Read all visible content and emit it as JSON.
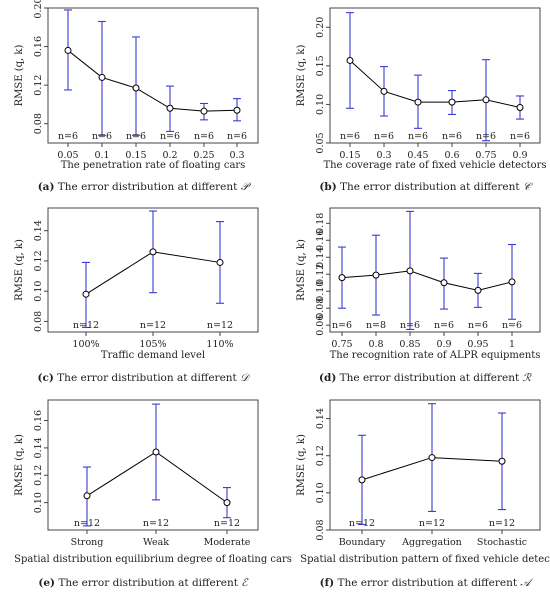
{
  "chart_data": [
    {
      "type": "line",
      "panel": "a",
      "categories": [
        "0.05",
        "0.1",
        "0.15",
        "0.2",
        "0.25",
        "0.3"
      ],
      "means": [
        0.156,
        0.128,
        0.117,
        0.096,
        0.093,
        0.094
      ],
      "err_low": [
        0.115,
        0.068,
        0.068,
        0.072,
        0.084,
        0.083
      ],
      "err_high": [
        0.198,
        0.186,
        0.17,
        0.119,
        0.101,
        0.106
      ],
      "n_labels": [
        "n=6",
        "n=6",
        "n=6",
        "n=6",
        "n=6",
        "n=6"
      ],
      "ylim": [
        0.06,
        0.2
      ],
      "yticks": [
        0.08,
        0.12,
        0.16,
        0.2
      ],
      "ytick_labels": [
        "0.08",
        "0.12",
        "0.16",
        "0.20"
      ],
      "ylabel": "RMSE (q, k)",
      "xlabel": "The penetration rate of floating cars",
      "caption_prefix": "(a)",
      "caption_text": "The error distribution at different",
      "caption_symbol": "𝒫"
    },
    {
      "type": "line",
      "panel": "b",
      "categories": [
        "0.15",
        "0.3",
        "0.45",
        "0.6",
        "0.75",
        "0.9"
      ],
      "means": [
        0.157,
        0.117,
        0.103,
        0.103,
        0.106,
        0.096
      ],
      "err_low": [
        0.095,
        0.085,
        0.069,
        0.087,
        0.053,
        0.081
      ],
      "err_high": [
        0.219,
        0.149,
        0.138,
        0.118,
        0.158,
        0.111
      ],
      "n_labels": [
        "n=6",
        "n=6",
        "n=6",
        "n=6",
        "n=6",
        "n=6"
      ],
      "ylim": [
        0.05,
        0.225
      ],
      "yticks": [
        0.05,
        0.1,
        0.15,
        0.2
      ],
      "ytick_labels": [
        "0.05",
        "0.10",
        "0.15",
        "0.20"
      ],
      "ylabel": "RMSE (q, k)",
      "xlabel": "The coverage rate of fixed vehicle detectors",
      "caption_prefix": "(b)",
      "caption_text": "The error distribution at different",
      "caption_symbol": "𝒞"
    },
    {
      "type": "line",
      "panel": "c",
      "categories": [
        "100%",
        "105%",
        "110%"
      ],
      "means": [
        0.098,
        0.126,
        0.119
      ],
      "err_low": [
        0.076,
        0.099,
        0.092
      ],
      "err_high": [
        0.119,
        0.153,
        0.146
      ],
      "n_labels": [
        "n=12",
        "n=12",
        "n=12"
      ],
      "ylim": [
        0.073,
        0.155
      ],
      "yticks": [
        0.08,
        0.1,
        0.12,
        0.14
      ],
      "ytick_labels": [
        "0.08",
        "0.10",
        "0.12",
        "0.14"
      ],
      "ylabel": "RMSE (q, k)",
      "xlabel": "Traffic demand level",
      "caption_prefix": "(c)",
      "caption_text": "The error distribution at different",
      "caption_symbol": "𝒟"
    },
    {
      "type": "line",
      "panel": "d",
      "categories": [
        "0.75",
        "0.8",
        "0.85",
        "0.9",
        "0.95",
        "1"
      ],
      "means": [
        0.116,
        0.119,
        0.124,
        0.11,
        0.101,
        0.111
      ],
      "err_low": [
        0.08,
        0.072,
        0.055,
        0.079,
        0.081,
        0.067
      ],
      "err_high": [
        0.152,
        0.166,
        0.194,
        0.139,
        0.121,
        0.155
      ],
      "n_labels": [
        "n=6",
        "n=8",
        "n=6",
        "n=6",
        "n=6",
        "n=6"
      ],
      "ylim": [
        0.052,
        0.198
      ],
      "yticks": [
        0.06,
        0.08,
        0.1,
        0.12,
        0.14,
        0.16,
        0.18
      ],
      "ytick_labels": [
        "0.06",
        "0.08",
        "0.10",
        "0.12",
        "0.14",
        "0.16",
        "0.18"
      ],
      "ylabel": "RMSE (q, k)",
      "xlabel": "The recognition rate of ALPR equipments",
      "caption_prefix": "(d)",
      "caption_text": "The error distribution at different",
      "caption_symbol": "ℛ"
    },
    {
      "type": "line",
      "panel": "e",
      "categories": [
        "Strong",
        "Weak",
        "Moderate"
      ],
      "means": [
        0.105,
        0.137,
        0.1
      ],
      "err_low": [
        0.083,
        0.102,
        0.089
      ],
      "err_high": [
        0.126,
        0.172,
        0.111
      ],
      "n_labels": [
        "n=12",
        "n=12",
        "n=12"
      ],
      "ylim": [
        0.08,
        0.175
      ],
      "yticks": [
        0.1,
        0.12,
        0.14,
        0.16
      ],
      "ytick_labels": [
        "0.10",
        "0.12",
        "0.14",
        "0.16"
      ],
      "ylabel": "RMSE (q, k)",
      "xlabel": "Spatial distribution equilibrium degree of floating cars",
      "caption_prefix": "(e)",
      "caption_text": "The error distribution at different",
      "caption_symbol": "ℰ"
    },
    {
      "type": "line",
      "panel": "f",
      "categories": [
        "Boundary",
        "Aggregation",
        "Stochastic"
      ],
      "means": [
        0.107,
        0.119,
        0.117
      ],
      "err_low": [
        0.083,
        0.09,
        0.091
      ],
      "err_high": [
        0.131,
        0.148,
        0.143
      ],
      "n_labels": [
        "n=12",
        "n=12",
        "n=12"
      ],
      "ylim": [
        0.08,
        0.15
      ],
      "yticks": [
        0.08,
        0.1,
        0.12,
        0.14
      ],
      "ytick_labels": [
        "0.08",
        "0.10",
        "0.12",
        "0.14"
      ],
      "ylabel": "RMSE (q, k)",
      "xlabel": "Spatial distribution pattern of fixed vehicle detectors",
      "caption_prefix": "(f)",
      "caption_text": "The error distribution at different",
      "caption_symbol": "𝒜"
    }
  ],
  "colors": {
    "errorbar": "#3b3bd6",
    "line": "#000000",
    "axis": "#444444"
  }
}
